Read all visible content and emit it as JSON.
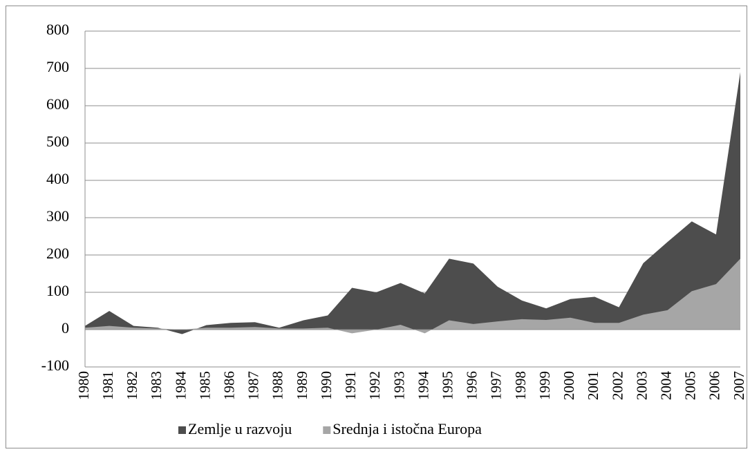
{
  "chart_data": {
    "type": "area",
    "categories": [
      "1980",
      "1981",
      "1982",
      "1983",
      "1984",
      "1985",
      "1986",
      "1987",
      "1988",
      "1989",
      "1990",
      "1991",
      "1992",
      "1993",
      "1994",
      "1995",
      "1996",
      "1997",
      "1998",
      "1999",
      "2000",
      "2001",
      "2002",
      "2003",
      "2004",
      "2005",
      "2006",
      "2007"
    ],
    "series": [
      {
        "name": "Zemlje u razvoju",
        "color": "#4d4d4d",
        "values": [
          10,
          50,
          10,
          5,
          -12,
          12,
          18,
          20,
          5,
          25,
          38,
          112,
          100,
          125,
          97,
          190,
          177,
          115,
          78,
          57,
          82,
          88,
          60,
          178,
          235,
          290,
          255,
          690
        ]
      },
      {
        "name": "Srednja i istočna Europa",
        "color": "#a6a6a6",
        "values": [
          5,
          10,
          5,
          3,
          0,
          5,
          5,
          7,
          3,
          3,
          5,
          -10,
          0,
          13,
          -10,
          25,
          15,
          22,
          28,
          26,
          32,
          18,
          18,
          40,
          52,
          103,
          122,
          190
        ]
      }
    ],
    "ylim": [
      -100,
      800
    ],
    "yticks": [
      -100,
      0,
      100,
      200,
      300,
      400,
      500,
      600,
      700,
      800
    ],
    "grid": true,
    "legend": "bottom"
  }
}
